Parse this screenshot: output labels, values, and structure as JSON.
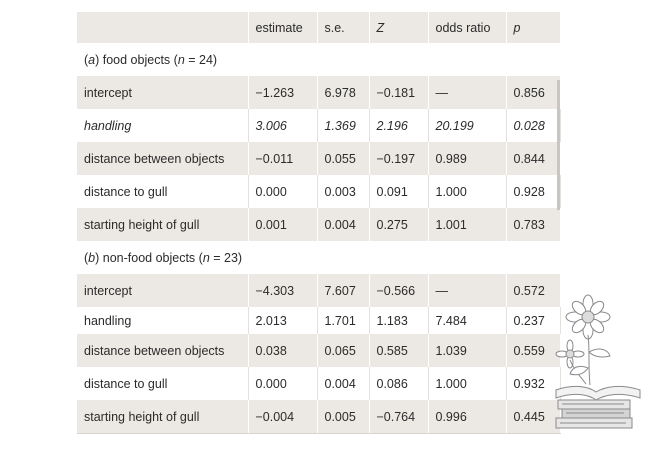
{
  "table": {
    "columns": [
      "",
      "estimate",
      "s.e.",
      "Z",
      "odds ratio",
      "p"
    ],
    "sections": [
      {
        "label_prefix": "(",
        "label_letter": "a",
        "label_mid": ") food objects (",
        "label_n": "n",
        "label_suffix": " = 24)",
        "rows": [
          {
            "cells": [
              "intercept",
              "−1.263",
              "6.978",
              "−0.181",
              "—",
              "0.856"
            ]
          },
          {
            "cells": [
              "handling",
              "3.006",
              "1.369",
              "2.196",
              "20.199",
              "0.028"
            ]
          },
          {
            "cells": [
              "distance between objects",
              "−0.011",
              "0.055",
              "−0.197",
              "0.989",
              "0.844"
            ]
          },
          {
            "cells": [
              "distance to gull",
              "0.000",
              "0.003",
              "0.091",
              "1.000",
              "0.928"
            ]
          },
          {
            "cells": [
              "starting height of gull",
              "0.001",
              "0.004",
              "0.275",
              "1.001",
              "0.783"
            ]
          }
        ]
      },
      {
        "label_prefix": "(",
        "label_letter": "b",
        "label_mid": ") non-food objects (",
        "label_n": "n",
        "label_suffix": " = 23)",
        "rows": [
          {
            "cells": [
              "intercept",
              "−4.303",
              "7.607",
              "−0.566",
              "—",
              "0.572"
            ]
          },
          {
            "cells": [
              "handling",
              "2.013",
              "1.701",
              "1.183",
              "7.484",
              "0.237"
            ]
          },
          {
            "cells": [
              "distance between objects",
              "0.038",
              "0.065",
              "0.585",
              "1.039",
              "0.559"
            ]
          },
          {
            "cells": [
              "distance to gull",
              "0.000",
              "0.004",
              "0.086",
              "1.000",
              "0.932"
            ]
          },
          {
            "cells": [
              "starting height of gull",
              "−0.004",
              "0.005",
              "−0.764",
              "0.996",
              "0.445"
            ]
          }
        ]
      }
    ]
  },
  "decoration": {
    "icon": "flower-on-books-icon",
    "line_color": "#8a8a8a"
  }
}
